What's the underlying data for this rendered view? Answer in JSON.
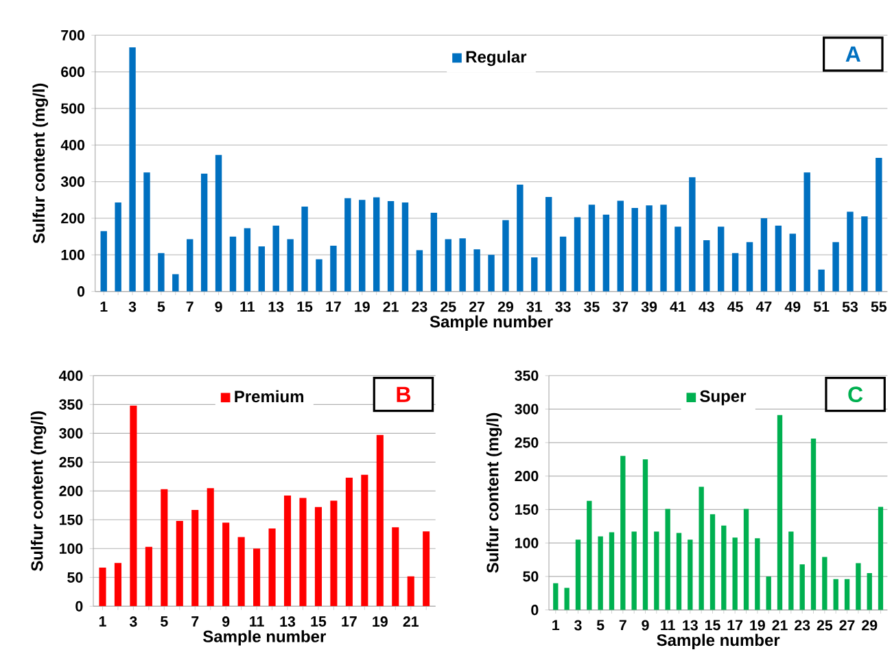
{
  "chart_data": [
    {
      "type": "bar",
      "xlabel": "Sample number",
      "ylabel": "Sulfur content (mg/l)",
      "annotations": [
        "A"
      ],
      "legend": "top",
      "grid": "y",
      "ylim": [
        0,
        700
      ],
      "yticks": [
        0,
        100,
        200,
        300,
        400,
        500,
        600,
        700
      ],
      "categories": [
        "1",
        null,
        "3",
        null,
        "5",
        null,
        "7",
        null,
        "9",
        null,
        "11",
        null,
        "13",
        null,
        "15",
        null,
        "17",
        null,
        "19",
        null,
        "21",
        null,
        "23",
        null,
        "25",
        null,
        "27",
        null,
        "29",
        null,
        "31",
        null,
        "33",
        null,
        "35",
        null,
        "37",
        null,
        "39",
        null,
        "41",
        null,
        "43",
        null,
        "45",
        null,
        "47",
        null,
        "49",
        null,
        "51",
        null,
        "53",
        null,
        "55"
      ],
      "series": [
        {
          "name": "Regular",
          "color": "#0070c0",
          "values": [
            165,
            243,
            667,
            325,
            105,
            47,
            143,
            322,
            373,
            150,
            173,
            123,
            180,
            143,
            232,
            88,
            125,
            255,
            250,
            257,
            247,
            243,
            113,
            215,
            143,
            145,
            115,
            100,
            195,
            292,
            93,
            258,
            150,
            203,
            237,
            210,
            248,
            228,
            235,
            237,
            177,
            312,
            140,
            177,
            105,
            135,
            200,
            180,
            158,
            325,
            60,
            135,
            218,
            205,
            365
          ]
        }
      ]
    },
    {
      "type": "bar",
      "xlabel": "Sample number",
      "ylabel": "Sulfur content (mg/l)",
      "annotations": [
        "B"
      ],
      "legend": "top",
      "grid": "y",
      "ylim": [
        0,
        400
      ],
      "yticks": [
        0,
        50,
        100,
        150,
        200,
        250,
        300,
        350,
        400
      ],
      "categories": [
        "1",
        null,
        "3",
        null,
        "5",
        null,
        "7",
        null,
        "9",
        null,
        "11",
        null,
        "13",
        null,
        "15",
        null,
        "17",
        null,
        "19",
        null,
        "21",
        null
      ],
      "series": [
        {
          "name": "Premium",
          "color": "#ff0000",
          "values": [
            67,
            75,
            348,
            103,
            203,
            148,
            167,
            205,
            145,
            120,
            100,
            135,
            192,
            188,
            172,
            183,
            223,
            228,
            297,
            137,
            52,
            130
          ]
        }
      ]
    },
    {
      "type": "bar",
      "xlabel": "Sample number",
      "ylabel": "Sulfur content (mg/l)",
      "annotations": [
        "C"
      ],
      "legend": "top",
      "grid": "y",
      "ylim": [
        0,
        350
      ],
      "yticks": [
        0,
        50,
        100,
        150,
        200,
        250,
        300,
        350
      ],
      "categories": [
        "1",
        null,
        "3",
        null,
        "5",
        null,
        "7",
        null,
        "9",
        null,
        "11",
        null,
        "13",
        null,
        "15",
        null,
        "17",
        null,
        "19",
        null,
        "21",
        null,
        "23",
        null,
        "25",
        null,
        "27",
        null,
        "29",
        null
      ],
      "series": [
        {
          "name": "Super",
          "color": "#00b050",
          "values": [
            40,
            33,
            105,
            163,
            110,
            116,
            230,
            117,
            225,
            117,
            151,
            115,
            105,
            184,
            143,
            126,
            108,
            151,
            107,
            50,
            291,
            117,
            68,
            256,
            79,
            46,
            46,
            70,
            55,
            154
          ]
        }
      ]
    }
  ]
}
